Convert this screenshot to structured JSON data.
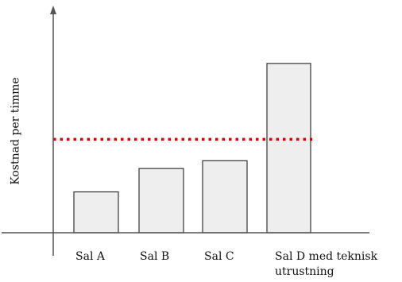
{
  "chart_data": {
    "type": "bar",
    "title": "",
    "xlabel": "",
    "ylabel": "Kostnad per timme",
    "categories": [
      "Sal A",
      "Sal B",
      "Sal C",
      "Sal D med teknisk utrustning"
    ],
    "values": [
      21,
      33,
      37,
      87
    ],
    "reference_line": {
      "value": 48,
      "style": "dotted",
      "color": "#e00000"
    },
    "ylim": [
      0,
      100
    ],
    "grid": false,
    "y_tick_labels_shown": false,
    "bar_color": "#eeeeee",
    "bar_edge_color": "#333333",
    "axis_color": "#555555"
  }
}
